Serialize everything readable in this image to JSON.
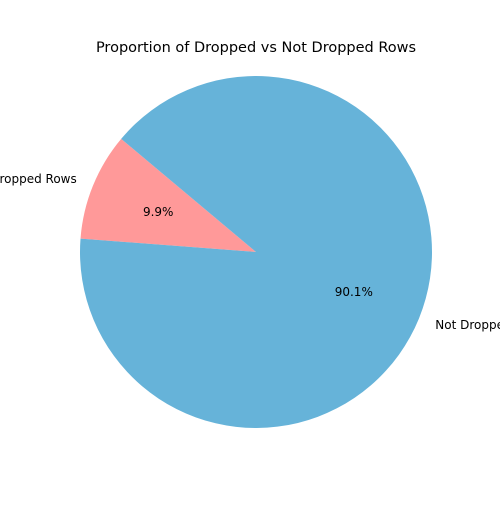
{
  "chart_data": {
    "type": "pie",
    "title": "Proportion of Dropped vs Not Dropped Rows",
    "slices": [
      {
        "label": "Dropped Rows",
        "value": 9.9,
        "pct_label": "9.9%",
        "color": "#ff9999"
      },
      {
        "label": "Not Dropped Rows",
        "value": 90.1,
        "pct_label": "90.1%",
        "color": "#66b3d9"
      }
    ],
    "start_angle_deg": 140,
    "direction": "counterclockwise"
  }
}
